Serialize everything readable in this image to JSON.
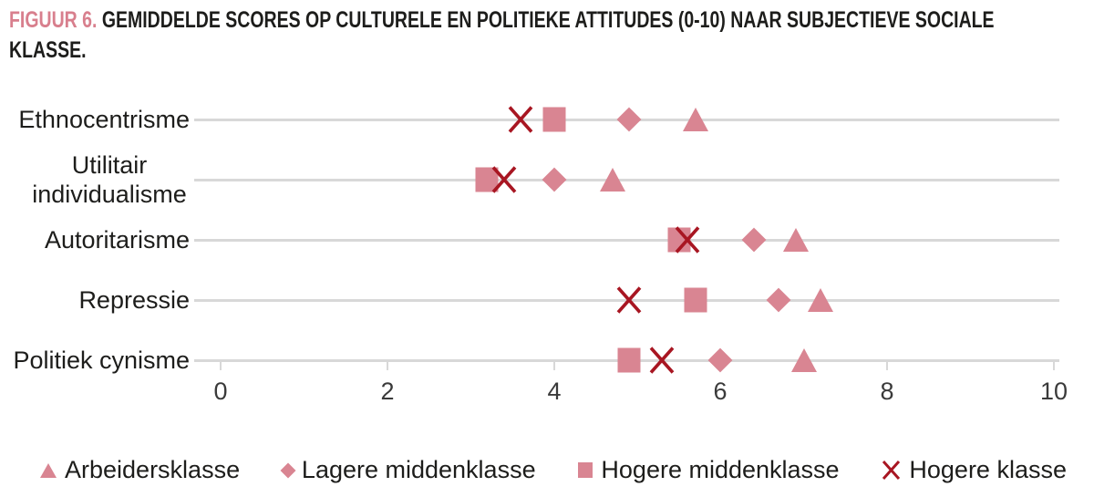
{
  "title": {
    "prefix": "FIGUUR 6.",
    "line1": "GEMIDDELDE SCORES OP CULTURELE EN POLITIEKE ATTITUDES (0-10) NAAR SUBJECTIEVE SOCIALE",
    "line2": "KLASSE."
  },
  "colors": {
    "rose": "#d98592",
    "crimson": "#a81622",
    "gridline": "#d8d8d8",
    "title_accent": "#d87f8d",
    "text": "#1d1d1b"
  },
  "chart_data": {
    "type": "scatter",
    "subtype": "horizontal-dot-plot",
    "title": "FIGUUR 6. GEMIDDELDE SCORES OP CULTURELE EN POLITIEKE ATTITUDES (0-10) NAAR SUBJECTIEVE SOCIALE KLASSE.",
    "categories": [
      "Ethnocentrisme",
      "Utilitair individualisme",
      "Autoritarisme",
      "Repressie",
      "Politiek cynisme"
    ],
    "series": [
      {
        "name": "Arbeidersklasse",
        "marker": "triangle",
        "color": "#d98592",
        "values": [
          5.7,
          4.7,
          6.9,
          7.2,
          7.0
        ]
      },
      {
        "name": "Lagere middenklasse",
        "marker": "diamond",
        "color": "#d98592",
        "values": [
          4.9,
          4.0,
          6.4,
          6.7,
          6.0
        ]
      },
      {
        "name": "Hogere middenklasse",
        "marker": "square",
        "color": "#d98592",
        "values": [
          4.0,
          3.2,
          5.5,
          5.7,
          4.9
        ]
      },
      {
        "name": "Hogere klasse",
        "marker": "x",
        "color": "#a81622",
        "values": [
          3.6,
          3.4,
          5.6,
          4.9,
          5.3
        ]
      }
    ],
    "xlim": [
      0,
      10
    ],
    "xticks": [
      0,
      2,
      4,
      6,
      8,
      10
    ],
    "grid": "horizontal-category-lines",
    "legend_position": "bottom"
  }
}
